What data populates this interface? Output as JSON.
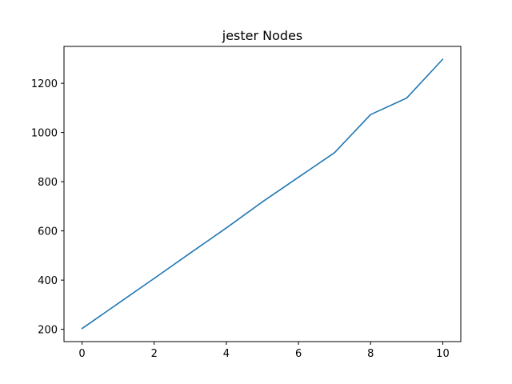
{
  "chart_data": {
    "type": "line",
    "title": "jester Nodes",
    "xlabel": "",
    "ylabel": "",
    "xlim": [
      -0.5,
      10.5
    ],
    "ylim": [
      150,
      1350
    ],
    "x_ticks": [
      0,
      2,
      4,
      6,
      8,
      10
    ],
    "y_ticks": [
      200,
      400,
      600,
      800,
      1000,
      1200
    ],
    "grid": false,
    "series": [
      {
        "color": "#1f77b4",
        "x": [
          0,
          1,
          2,
          3,
          4,
          5,
          6,
          7,
          8,
          9,
          10
        ],
        "y": [
          203,
          305,
          407,
          510,
          612,
          718,
          818,
          918,
          1073,
          1140,
          1298
        ]
      }
    ]
  }
}
